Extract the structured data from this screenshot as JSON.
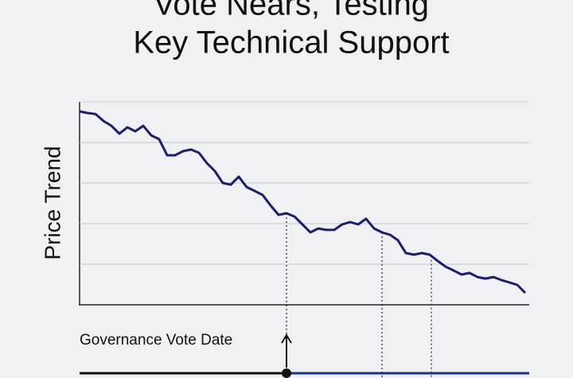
{
  "chart_data": {
    "type": "line",
    "title": [
      "Vote Nears, Testing",
      "Key Technical Support"
    ],
    "y_label": "Price Trend",
    "x": [
      0,
      1,
      2,
      3,
      4,
      5,
      6,
      7,
      8,
      9,
      10,
      11,
      12,
      13,
      14,
      15,
      16,
      17,
      18,
      19,
      20,
      21,
      22,
      23,
      24,
      25,
      26,
      27,
      28,
      29,
      30,
      31,
      32,
      33,
      34,
      35,
      36,
      37,
      38,
      39,
      40,
      41,
      42,
      43,
      44,
      45,
      46,
      47,
      48,
      49,
      50,
      51,
      52,
      53,
      54,
      55,
      56
    ],
    "values": [
      95.3,
      94.5,
      94,
      90.6,
      88.2,
      84.3,
      87.5,
      85.5,
      88.2,
      83.5,
      81.6,
      73.7,
      73.7,
      75.7,
      76.5,
      74.9,
      69.8,
      65.9,
      60,
      59.2,
      63.1,
      58,
      56.1,
      54.1,
      49,
      44.3,
      45.1,
      43.5,
      39.6,
      35.7,
      37.6,
      36.9,
      36.9,
      39.6,
      40.8,
      39.6,
      42.4,
      37.6,
      35.7,
      34.5,
      31.8,
      25.5,
      24.7,
      25.5,
      24.7,
      21.6,
      18.8,
      16.9,
      14.9,
      15.7,
      13.7,
      12.9,
      13.7,
      12.2,
      11,
      9.8,
      5.9
    ],
    "color": "#1c1f6e",
    "xlim": [
      0,
      56
    ],
    "ylim": [
      0,
      100
    ],
    "yticks": [
      20,
      40,
      60,
      80,
      100
    ],
    "grid": true,
    "reference_lines_x": [
      26,
      38,
      44.2
    ],
    "annotation": {
      "text": "Governance Vote Date",
      "x": 26
    }
  }
}
